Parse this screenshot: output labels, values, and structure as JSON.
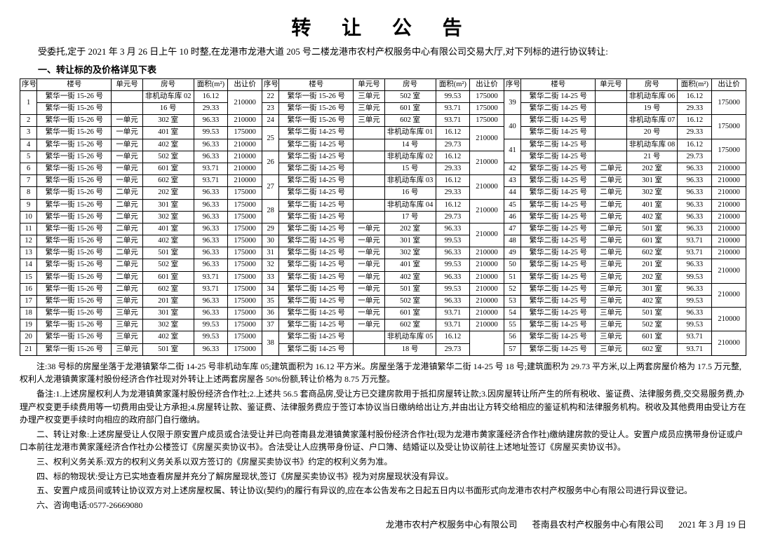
{
  "title": "转 让 公 告",
  "intro": "受委托,定于 2021 年 3 月 26 日上午 10 时整,在龙港市龙港大道 205 号二楼龙港市农村产权服务中心有限公司交易大厅,对下列标的进行协议转让:",
  "subhead": "一、转让标的及价格详见下表",
  "headers": {
    "seq": "序号",
    "building": "楼号",
    "unit": "单元号",
    "room": "房号",
    "area": "面积(m²)",
    "price": "出让价"
  },
  "rows": [
    {
      "seqSpan": 2,
      "seq": "1",
      "b": "繁华一街 15-26 号",
      "u": "",
      "r": "非机动车库 02",
      "a": "16.12",
      "p": "210000",
      "pSpan": 2
    },
    {
      "b": "繁华一街 15-26 号",
      "u": "",
      "r": "16 号",
      "a": "29.33"
    },
    {
      "seq": "2",
      "b": "繁华一街 15-26 号",
      "u": "一单元",
      "r": "302 室",
      "a": "96.33",
      "p": "210000"
    },
    {
      "seq": "3",
      "b": "繁华一街 15-26 号",
      "u": "一单元",
      "r": "401 室",
      "a": "99.53",
      "p": "175000"
    },
    {
      "seq": "4",
      "b": "繁华一街 15-26 号",
      "u": "一单元",
      "r": "402 室",
      "a": "96.33",
      "p": "210000"
    },
    {
      "seq": "5",
      "b": "繁华一街 15-26 号",
      "u": "一单元",
      "r": "502 室",
      "a": "96.33",
      "p": "210000"
    },
    {
      "seq": "6",
      "b": "繁华一街 15-26 号",
      "u": "一单元",
      "r": "601 室",
      "a": "93.71",
      "p": "210000"
    },
    {
      "seq": "7",
      "b": "繁华一街 15-26 号",
      "u": "一单元",
      "r": "602 室",
      "a": "93.71",
      "p": "210000"
    },
    {
      "seq": "8",
      "b": "繁华一街 15-26 号",
      "u": "二单元",
      "r": "202 室",
      "a": "96.33",
      "p": "175000"
    },
    {
      "seq": "9",
      "b": "繁华一街 15-26 号",
      "u": "二单元",
      "r": "301 室",
      "a": "96.33",
      "p": "175000"
    },
    {
      "seq": "10",
      "b": "繁华一街 15-26 号",
      "u": "二单元",
      "r": "302 室",
      "a": "96.33",
      "p": "175000"
    },
    {
      "seq": "11",
      "b": "繁华一街 15-26 号",
      "u": "二单元",
      "r": "401 室",
      "a": "96.33",
      "p": "175000"
    },
    {
      "seq": "12",
      "b": "繁华一街 15-26 号",
      "u": "二单元",
      "r": "402 室",
      "a": "96.33",
      "p": "175000"
    },
    {
      "seq": "13",
      "b": "繁华一街 15-26 号",
      "u": "二单元",
      "r": "501 室",
      "a": "96.33",
      "p": "175000"
    },
    {
      "seq": "14",
      "b": "繁华一街 15-26 号",
      "u": "二单元",
      "r": "502 室",
      "a": "96.33",
      "p": "175000"
    },
    {
      "seq": "15",
      "b": "繁华一街 15-26 号",
      "u": "二单元",
      "r": "601 室",
      "a": "93.71",
      "p": "175000"
    },
    {
      "seq": "16",
      "b": "繁华一街 15-26 号",
      "u": "二单元",
      "r": "602 室",
      "a": "93.71",
      "p": "175000"
    },
    {
      "seq": "17",
      "b": "繁华一街 15-26 号",
      "u": "三单元",
      "r": "201 室",
      "a": "96.33",
      "p": "175000"
    },
    {
      "seq": "18",
      "b": "繁华一街 15-26 号",
      "u": "三单元",
      "r": "301 室",
      "a": "96.33",
      "p": "175000"
    },
    {
      "seq": "19",
      "b": "繁华一街 15-26 号",
      "u": "三单元",
      "r": "302 室",
      "a": "99.53",
      "p": "175000"
    },
    {
      "seq": "20",
      "b": "繁华一街 15-26 号",
      "u": "三单元",
      "r": "402 室",
      "a": "99.53",
      "p": "175000"
    },
    {
      "seq": "21",
      "b": "繁华一街 15-26 号",
      "u": "三单元",
      "r": "501 室",
      "a": "96.33",
      "p": "175000"
    }
  ],
  "rows2": [
    {
      "seq": "22",
      "b": "繁华一街 15-26 号",
      "u": "三单元",
      "r": "502 室",
      "a": "99.53",
      "p": "175000"
    },
    {
      "seq": "23",
      "b": "繁华一街 15-26 号",
      "u": "三单元",
      "r": "601 室",
      "a": "93.71",
      "p": "175000"
    },
    {
      "seq": "24",
      "b": "繁华一街 15-26 号",
      "u": "三单元",
      "r": "602 室",
      "a": "93.71",
      "p": "175000"
    },
    {
      "seqSpan": 2,
      "seq": "25",
      "b": "繁华二街 14-25 号",
      "u": "",
      "r": "非机动车库 01",
      "a": "16.12",
      "p": "210000",
      "pSpan": 2
    },
    {
      "b": "繁华二街 14-25 号",
      "u": "",
      "r": "14 号",
      "a": "29.73"
    },
    {
      "seqSpan": 2,
      "seq": "26",
      "b": "繁华二街 14-25 号",
      "u": "",
      "r": "非机动车库 02",
      "a": "16.12",
      "p": "210000",
      "pSpan": 2
    },
    {
      "b": "繁华二街 14-25 号",
      "u": "",
      "r": "15 号",
      "a": "29.33"
    },
    {
      "seqSpan": 2,
      "seq": "27",
      "b": "繁华二街 14-25 号",
      "u": "",
      "r": "非机动车库 03",
      "a": "16.12",
      "p": "210000",
      "pSpan": 2
    },
    {
      "b": "繁华二街 14-25 号",
      "u": "",
      "r": "16 号",
      "a": "29.33"
    },
    {
      "seqSpan": 2,
      "seq": "28",
      "b": "繁华二街 14-25 号",
      "u": "",
      "r": "非机动车库 04",
      "a": "16.12",
      "p": "210000",
      "pSpan": 2
    },
    {
      "b": "繁华二街 14-25 号",
      "u": "",
      "r": "17 号",
      "a": "29.73"
    },
    {
      "seq": "29",
      "b": "繁华二街 14-25 号",
      "u": "一单元",
      "r": "202 室",
      "a": "96.33",
      "p": "210000",
      "pSpan": 2
    },
    {
      "seq": "30",
      "b": "繁华二街 14-25 号",
      "u": "一单元",
      "r": "301 室",
      "a": "99.53"
    },
    {
      "seq": "31",
      "b": "繁华二街 14-25 号",
      "u": "一单元",
      "r": "302 室",
      "a": "96.33",
      "p": "210000"
    },
    {
      "seq": "32",
      "b": "繁华二街 14-25 号",
      "u": "一单元",
      "r": "401 室",
      "a": "99.53",
      "p": "210000"
    },
    {
      "seq": "33",
      "b": "繁华二街 14-25 号",
      "u": "一单元",
      "r": "402 室",
      "a": "96.33",
      "p": "210000"
    },
    {
      "seq": "34",
      "b": "繁华二街 14-25 号",
      "u": "一单元",
      "r": "501 室",
      "a": "99.53",
      "p": "210000"
    },
    {
      "seq": "35",
      "b": "繁华二街 14-25 号",
      "u": "一单元",
      "r": "502 室",
      "a": "96.33",
      "p": "210000"
    },
    {
      "seq": "36",
      "b": "繁华二街 14-25 号",
      "u": "一单元",
      "r": "601 室",
      "a": "93.71",
      "p": "210000"
    },
    {
      "seq": "37",
      "b": "繁华二街 14-25 号",
      "u": "一单元",
      "r": "602 室",
      "a": "93.71",
      "p": "210000"
    },
    {
      "seqSpan": 2,
      "seq": "38",
      "b": "繁华二街 14-25 号",
      "u": "",
      "r": "非机动车库 05",
      "a": "16.12",
      "p": "",
      "pSpan": 2
    },
    {
      "b": "繁华二街 14-25 号",
      "u": "",
      "r": "18 号",
      "a": "29.73"
    }
  ],
  "rows3": [
    {
      "seqSpan": 2,
      "seq": "39",
      "b": "繁华二街 14-25 号",
      "u": "",
      "r": "非机动车库 06",
      "a": "16.12",
      "p": "175000",
      "pSpan": 2
    },
    {
      "b": "繁华二街 14-25 号",
      "u": "",
      "r": "19 号",
      "a": "29.33"
    },
    {
      "seqSpan": 2,
      "seq": "40",
      "b": "繁华二街 14-25 号",
      "u": "",
      "r": "非机动车库 07",
      "a": "16.12",
      "p": "175000",
      "pSpan": 2
    },
    {
      "b": "繁华二街 14-25 号",
      "u": "",
      "r": "20 号",
      "a": "29.33"
    },
    {
      "seqSpan": 2,
      "seq": "41",
      "b": "繁华二街 14-25 号",
      "u": "",
      "r": "非机动车库 08",
      "a": "16.12",
      "p": "175000",
      "pSpan": 2
    },
    {
      "b": "繁华二街 14-25 号",
      "u": "",
      "r": "21 号",
      "a": "29.73"
    },
    {
      "seq": "42",
      "b": "繁华二街 14-25 号",
      "u": "二单元",
      "r": "202 室",
      "a": "96.33",
      "p": "210000"
    },
    {
      "seq": "43",
      "b": "繁华二街 14-25 号",
      "u": "二单元",
      "r": "301 室",
      "a": "96.33",
      "p": "210000"
    },
    {
      "seq": "44",
      "b": "繁华二街 14-25 号",
      "u": "二单元",
      "r": "302 室",
      "a": "96.33",
      "p": "210000"
    },
    {
      "seq": "45",
      "b": "繁华二街 14-25 号",
      "u": "二单元",
      "r": "401 室",
      "a": "96.33",
      "p": "210000"
    },
    {
      "seq": "46",
      "b": "繁华二街 14-25 号",
      "u": "二单元",
      "r": "402 室",
      "a": "96.33",
      "p": "210000"
    },
    {
      "seq": "47",
      "b": "繁华二街 14-25 号",
      "u": "二单元",
      "r": "501 室",
      "a": "96.33",
      "p": "210000"
    },
    {
      "seq": "48",
      "b": "繁华二街 14-25 号",
      "u": "二单元",
      "r": "601 室",
      "a": "93.71",
      "p": "210000"
    },
    {
      "seq": "49",
      "b": "繁华二街 14-25 号",
      "u": "二单元",
      "r": "602 室",
      "a": "93.71",
      "p": "210000"
    },
    {
      "seq": "50",
      "b": "繁华二街 14-25 号",
      "u": "三单元",
      "r": "201 室",
      "a": "96.33",
      "p": "210000",
      "pSpan": 2
    },
    {
      "seq": "51",
      "b": "繁华二街 14-25 号",
      "u": "三单元",
      "r": "202 室",
      "a": "99.53"
    },
    {
      "seq": "52",
      "b": "繁华二街 14-25 号",
      "u": "三单元",
      "r": "301 室",
      "a": "96.33",
      "p": "210000",
      "pSpan": 2
    },
    {
      "seq": "53",
      "b": "繁华二街 14-25 号",
      "u": "三单元",
      "r": "402 室",
      "a": "99.53"
    },
    {
      "seq": "54",
      "b": "繁华二街 14-25 号",
      "u": "三单元",
      "r": "501 室",
      "a": "96.33",
      "p": "210000",
      "pSpan": 2
    },
    {
      "seq": "55",
      "b": "繁华二街 14-25 号",
      "u": "三单元",
      "r": "502 室",
      "a": "99.53"
    },
    {
      "seq": "56",
      "b": "繁华二街 14-25 号",
      "u": "三单元",
      "r": "601 室",
      "a": "93.71",
      "p": "210000",
      "pSpan": 2
    },
    {
      "seq": "57",
      "b": "繁华二街 14-25 号",
      "u": "三单元",
      "r": "602 室",
      "a": "93.71"
    }
  ],
  "notes": [
    "注:38 号标的房屋坐落于龙港镇繁华二街 14-25 号非机动车库 05;建筑面积为 16.12 平方米。房屋坐落于龙港镇繁华二街 14-25 号 18 号;建筑面积为 29.73 平方米,以上两套房屋价格为 17.5 万元整,权利人龙港镇黄家蓬村股份经济合作社现对外转让上述两套房屋各 50%份额,转让价格为 8.75 万元整。",
    "备注:1.上述房屋权利人为龙港镇黄家蓬村股份经济合作社;2.上述共 56.5 套商品房,受让方已交建房款用于抵扣房屋转让款;3.因房屋转让所产生的所有税收、鉴证费、法律服务费,交交易服务费,办理产权变更手续费用等一切费用由受让方承担;4.房屋转让款、鉴证费、法律服务费应于签订本协议当日缴纳给出让方,并由出让方转交给相应的鉴证机构和法律服务机构。税收及其他费用由受让方在办理产权变更手续时向相应的政府部门自行缴纳。",
    "二、转让对象:上述房屋受让人仅限于原安置户成员或合法受让并已向苍南县龙港镇黄家蓬村股份经济合作社(现为龙港市黄家蓬经济合作社)缴纳建房款的受让人。安置户成员应携带身份证或户口本前往龙港市黄家蓬经济合作社办公楼签订《房屋买卖协议书》。合法受让人应携带身份证、户口簿、结婚证以及受让协议前往上述地址签订《房屋买卖协议书》。",
    "三、权利义务关系:双方的权利义务关系以双方签订的《房屋买卖协议书》约定的权利义务为准。",
    "四、标的物现状:受让方已实地查看房屋并充分了解房屋现状,签订《房屋买卖协议书》视为对房屋现状没有异议。",
    "五、安置户成员间或转让协议双方对上述房屋权属、转让协议(契约)的履行有异议的,应在本公告发布之日起五日内以书面形式向龙港市农村产权服务中心有限公司进行异议登记。",
    "六、咨询电话:0577-26669080"
  ],
  "footer": {
    "org1": "龙港市农村产权服务中心有限公司",
    "org2": "苍南县农村产权服务中心有限公司",
    "date": "2021 年 3 月 19 日"
  }
}
